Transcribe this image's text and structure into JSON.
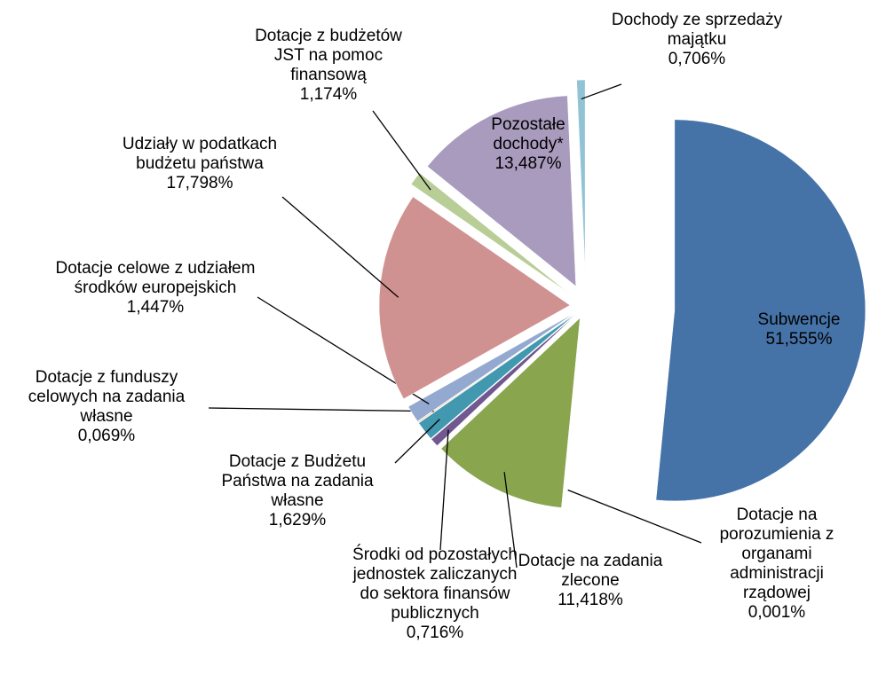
{
  "chart_data": {
    "type": "pie",
    "categories": [
      "Subwencje",
      "Dotacje na porozumienia z organami administracji rządowej",
      "Dotacje na zadania zlecone",
      "Środki od pozostałych jednostek zaliczanych do sektora finansów publicznych",
      "Dotacje z Budżetu Państwa na zadania własne",
      "Dotacje z funduszy celowych na zadania własne",
      "Dotacje celowe z udziałem środków europejskich",
      "Udziały w podatkach budżetu państwa",
      "Dotacje z budżetów JST na pomoc finansową",
      "Pozostałe dochody*",
      "Dochody ze sprzedaży majątku"
    ],
    "values": [
      51.555,
      0.001,
      11.418,
      0.716,
      1.629,
      0.069,
      1.447,
      17.798,
      1.174,
      13.487,
      0.706
    ],
    "value_labels": [
      "51,555%",
      "0,001%",
      "11,418%",
      "0,716%",
      "1,629%",
      "0,069%",
      "1,447%",
      "17,798%",
      "1,174%",
      "13,487%",
      "0,706%"
    ],
    "colors": [
      "#4572a7",
      "#db843d",
      "#89a54e",
      "#71588f",
      "#4198af",
      "#f2a468",
      "#93a9cf",
      "#d09291",
      "#b9cd96",
      "#a99bbd",
      "#92c3d5"
    ]
  }
}
